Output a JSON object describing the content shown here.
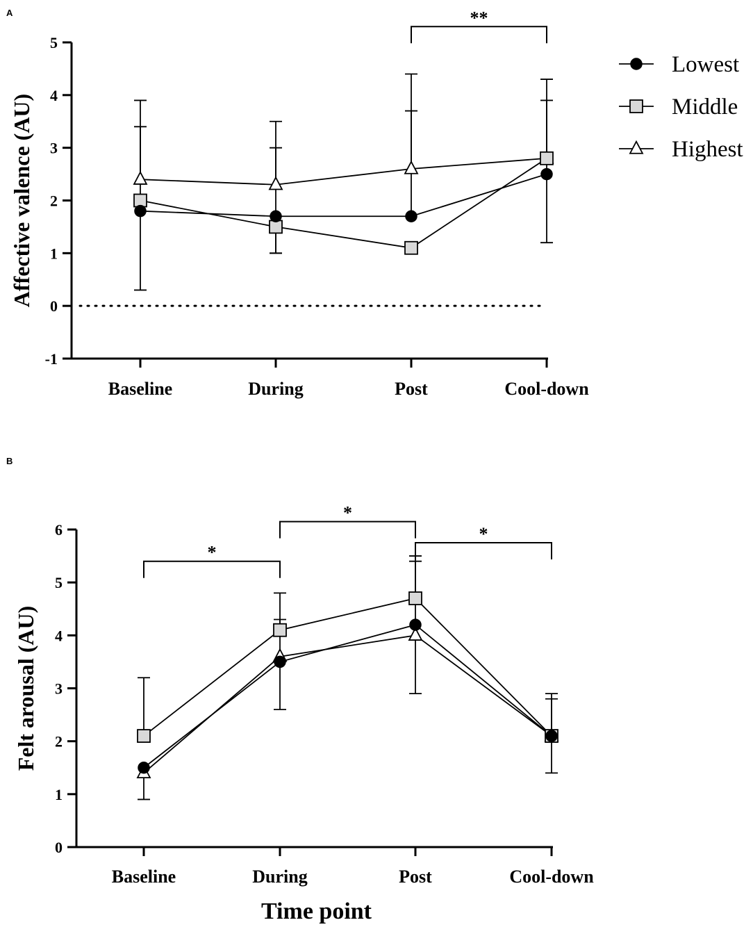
{
  "chart_data": [
    {
      "type": "line",
      "panel": "A",
      "categories": [
        "Baseline",
        "During",
        "Post",
        "Cool-down"
      ],
      "ylabel": "Affective valence (AU)",
      "xlabel": "",
      "ylim": [
        -1,
        5
      ],
      "yticks": [
        "-1",
        "0",
        "1",
        "2",
        "3",
        "4",
        "5"
      ],
      "reference_line": 0,
      "series": [
        {
          "name": "Lowest",
          "marker": "circle",
          "values": [
            1.8,
            1.7,
            1.7,
            2.5
          ],
          "err_low": [
            0.3,
            1.0,
            null,
            1.2
          ],
          "err_high": [
            3.4,
            null,
            3.7,
            3.9
          ]
        },
        {
          "name": "Middle",
          "marker": "square",
          "values": [
            2.0,
            1.5,
            1.1,
            2.8
          ],
          "err_low": [
            null,
            1.0,
            null,
            null
          ],
          "err_high": [
            null,
            3.0,
            null,
            4.3
          ]
        },
        {
          "name": "Highest",
          "marker": "triangle",
          "values": [
            2.4,
            2.3,
            2.6,
            2.8
          ],
          "err_low": [
            null,
            null,
            null,
            null
          ],
          "err_high": [
            3.9,
            3.5,
            4.4,
            null
          ]
        }
      ],
      "significance": [
        {
          "from": 2,
          "to": 3,
          "y": 5.3,
          "label": "**"
        }
      ],
      "legend": {
        "position": "top-right",
        "entries": [
          "Lowest",
          "Middle",
          "Highest"
        ]
      }
    },
    {
      "type": "line",
      "panel": "B",
      "categories": [
        "Baseline",
        "During",
        "Post",
        "Cool-down"
      ],
      "ylabel": "Felt arousal (AU)",
      "xlabel": "Time point",
      "ylim": [
        0,
        6
      ],
      "yticks": [
        "0",
        "1",
        "2",
        "3",
        "4",
        "5",
        "6"
      ],
      "series": [
        {
          "name": "Lowest",
          "marker": "circle",
          "values": [
            1.5,
            3.5,
            4.2,
            2.1
          ],
          "err_low": [
            0.9,
            2.6,
            2.9,
            1.4
          ],
          "err_high": [
            null,
            null,
            null,
            2.8
          ]
        },
        {
          "name": "Middle",
          "marker": "square",
          "values": [
            2.1,
            4.1,
            4.7,
            2.1
          ],
          "err_low": [
            null,
            null,
            null,
            null
          ],
          "err_high": [
            3.2,
            4.8,
            5.5,
            2.9
          ]
        },
        {
          "name": "Highest",
          "marker": "triangle",
          "values": [
            1.4,
            3.6,
            4.0,
            2.1
          ],
          "err_low": [
            null,
            null,
            null,
            null
          ],
          "err_high": [
            null,
            4.3,
            5.4,
            null
          ]
        }
      ],
      "significance": [
        {
          "from": 0,
          "to": 1,
          "y": 5.4,
          "label": "*"
        },
        {
          "from": 1,
          "to": 2,
          "y": 6.15,
          "label": "*"
        },
        {
          "from": 2,
          "to": 3,
          "y": 5.75,
          "label": "*"
        }
      ]
    }
  ]
}
